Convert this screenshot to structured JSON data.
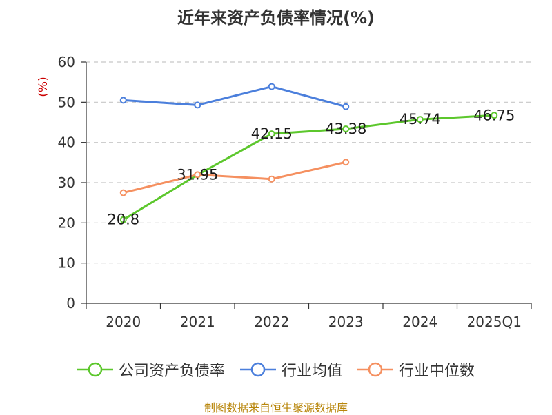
{
  "chart_data": {
    "type": "line",
    "title": "近年来资产负债率情况(%)",
    "ylabel": "(%)",
    "ylim": [
      0,
      60
    ],
    "yticks": [
      0,
      10,
      20,
      30,
      40,
      50,
      60
    ],
    "categories": [
      "2020",
      "2021",
      "2022",
      "2023",
      "2024",
      "2025Q1"
    ],
    "grid": true,
    "legend": "bottom",
    "series": [
      {
        "name": "公司资产负债率",
        "color": "#5cc72c",
        "values": [
          20.8,
          31.95,
          42.15,
          43.38,
          45.74,
          46.75
        ],
        "labels": [
          "20.8",
          "31.95",
          "42.15",
          "43.38",
          "45.74",
          "46.75"
        ]
      },
      {
        "name": "行业均值",
        "color": "#4b7fdc",
        "values": [
          50.5,
          49.3,
          53.9,
          48.9,
          null,
          null
        ]
      },
      {
        "name": "行业中位数",
        "color": "#f59060",
        "values": [
          27.5,
          32.0,
          30.9,
          35.1,
          null,
          null
        ]
      }
    ]
  },
  "source_note": "制图数据来自恒生聚源数据库"
}
